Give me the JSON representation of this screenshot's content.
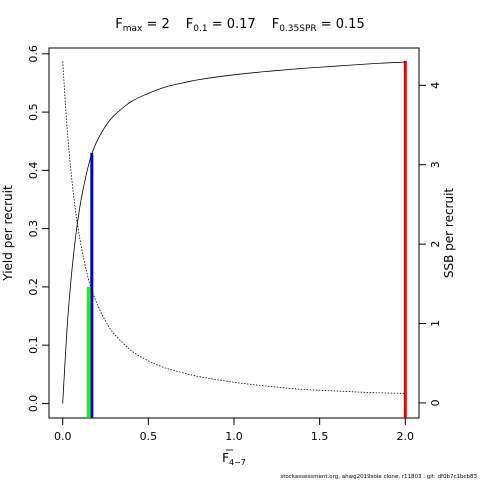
{
  "chart_data": {
    "type": "line",
    "title_parts": [
      {
        "main": "F",
        "sub": "max",
        "tail": " = 2"
      },
      {
        "main": "F",
        "sub": "0.1",
        "tail": " = 0.17"
      },
      {
        "main": "F",
        "sub": "0.35SPR",
        "tail": " = 0.15"
      }
    ],
    "xlabel": {
      "main": "F",
      "sub": "4−7"
    },
    "ylabel_left": "Yield per recruit",
    "ylabel_right": "SSB per recruit",
    "xlim": [
      -0.08,
      2.08
    ],
    "ylim_left": [
      -0.025,
      0.61
    ],
    "ylim_right": [
      -0.19,
      4.47
    ],
    "x_ticks": [
      {
        "v": 0,
        "label": "0.0"
      },
      {
        "v": 0.5,
        "label": "0.5"
      },
      {
        "v": 1,
        "label": "1.0"
      },
      {
        "v": 1.5,
        "label": "1.5"
      },
      {
        "v": 2,
        "label": "2.0"
      }
    ],
    "y_left_ticks": [
      {
        "v": 0,
        "label": "0.0"
      },
      {
        "v": 0.1,
        "label": "0.1"
      },
      {
        "v": 0.2,
        "label": "0.2"
      },
      {
        "v": 0.3,
        "label": "0.3"
      },
      {
        "v": 0.4,
        "label": "0.4"
      },
      {
        "v": 0.5,
        "label": "0.5"
      },
      {
        "v": 0.6,
        "label": "0.6"
      }
    ],
    "y_right_ticks": [
      {
        "v": 0,
        "label": "0"
      },
      {
        "v": 1,
        "label": "1"
      },
      {
        "v": 2,
        "label": "2"
      },
      {
        "v": 3,
        "label": "3"
      },
      {
        "v": 4,
        "label": "4"
      }
    ],
    "yield_curve": {
      "axis": "left",
      "x": [
        0,
        0.025,
        0.05,
        0.075,
        0.1,
        0.125,
        0.15,
        0.17,
        0.2,
        0.25,
        0.3,
        0.4,
        0.5,
        0.6,
        0.7,
        0.8,
        1.0,
        1.2,
        1.4,
        1.6,
        1.8,
        2.0
      ],
      "y": [
        0,
        0.127,
        0.217,
        0.285,
        0.337,
        0.376,
        0.408,
        0.428,
        0.45,
        0.476,
        0.494,
        0.518,
        0.532,
        0.543,
        0.55,
        0.556,
        0.564,
        0.57,
        0.575,
        0.579,
        0.583,
        0.586
      ]
    },
    "ssb_curve": {
      "axis": "right",
      "x": [
        0,
        0.025,
        0.05,
        0.075,
        0.1,
        0.125,
        0.15,
        0.17,
        0.2,
        0.25,
        0.3,
        0.4,
        0.5,
        0.6,
        0.7,
        0.8,
        1.0,
        1.2,
        1.4,
        1.6,
        1.8,
        2.0
      ],
      "y": [
        4.3,
        3.48,
        2.88,
        2.42,
        2.07,
        1.79,
        1.56,
        1.42,
        1.25,
        1.03,
        0.87,
        0.66,
        0.53,
        0.44,
        0.38,
        0.33,
        0.26,
        0.21,
        0.17,
        0.15,
        0.13,
        0.12
      ]
    },
    "reference_lines": [
      {
        "name": "F0.35SPR",
        "x": 0.15,
        "y": 0.2,
        "color": "#00ff00"
      },
      {
        "name": "F0.1",
        "x": 0.17,
        "y": 0.43,
        "color": "#0000cd"
      },
      {
        "name": "Fmax",
        "x": 2.0,
        "y": 0.588,
        "color": "#ee0000"
      }
    ],
    "grid": false,
    "legend": "none"
  },
  "footer": "stockassessment.org, ahwg2019sole clone, r11803 , git: df0b7c1bcb83"
}
